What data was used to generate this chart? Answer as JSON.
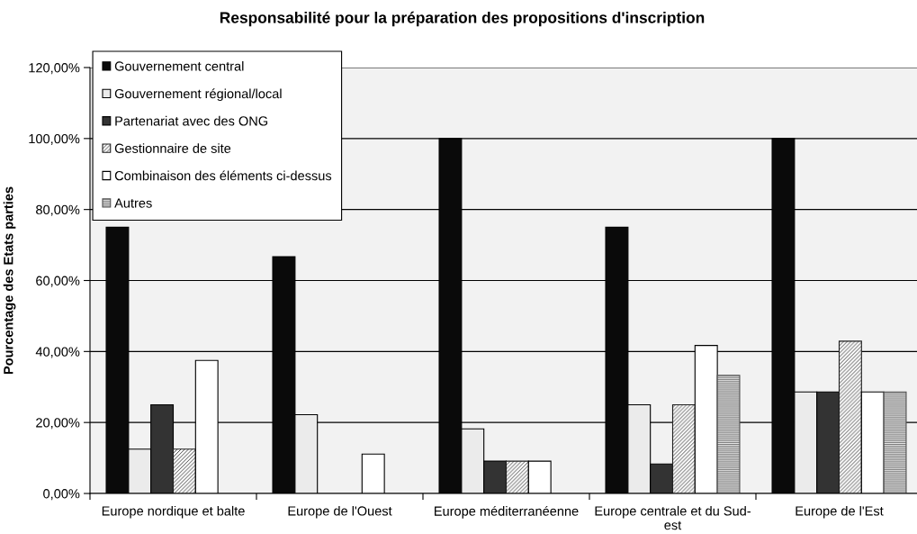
{
  "chart_data": {
    "type": "bar",
    "title": "Responsabilité pour la préparation des propositions d'inscription",
    "ylabel": "Pourcentage des Etats parties",
    "categories": [
      "Europe nordique et balte",
      "Europe de l'Ouest",
      "Europe méditerranéenne",
      "Europe centrale et du Sud-\nest",
      "Europe de l'Est"
    ],
    "series": [
      {
        "name": "Gouvernement central",
        "color": "#0a0a0a",
        "values": [
          75,
          66.7,
          100,
          75,
          100
        ]
      },
      {
        "name": "Gouvernement régional/local",
        "color": "#ebebeb",
        "values": [
          12.5,
          22.2,
          18.2,
          25,
          28.6
        ]
      },
      {
        "name": "Partenariat avec des ONG",
        "color": "#333333",
        "values": [
          25,
          null,
          9.1,
          8.3,
          28.6
        ]
      },
      {
        "name": "Gestionnaire de site",
        "color": "#202020",
        "values": [
          12.5,
          null,
          9.1,
          25,
          42.9
        ]
      },
      {
        "name": "Combinaison des éléments ci-dessus",
        "color": "#ffffff",
        "values": [
          37.5,
          11.1,
          9.1,
          41.7,
          28.6
        ]
      },
      {
        "name": "Autres",
        "color": "#505050",
        "values": [
          null,
          null,
          null,
          33.3,
          28.6
        ]
      }
    ],
    "ylim": [
      0,
      120
    ],
    "yticks": [
      {
        "value": 0,
        "label": "0,00%"
      },
      {
        "value": 20,
        "label": "20,00%"
      },
      {
        "value": 40,
        "label": "40,00%"
      },
      {
        "value": 60,
        "label": "60,00%"
      },
      {
        "value": 80,
        "label": "80,00%"
      },
      {
        "value": 100,
        "label": "100,00%"
      },
      {
        "value": 120,
        "label": "120,00%"
      }
    ],
    "grid": "y",
    "legend": "top left"
  }
}
